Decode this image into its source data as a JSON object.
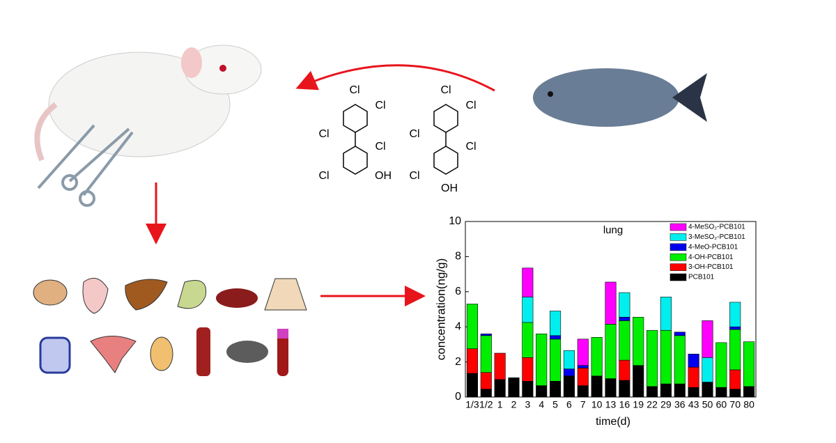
{
  "chart_data": {
    "type": "stacked_bar",
    "annotation": "lung",
    "xlabel": "time(d)",
    "ylabel": "concentration(ng/g)",
    "categories": [
      "1/3",
      "1/2",
      "1",
      "2",
      "3",
      "4",
      "5",
      "6",
      "7",
      "10",
      "13",
      "16",
      "19",
      "22",
      "29",
      "36",
      "43",
      "50",
      "60",
      "70",
      "80"
    ],
    "ylim": [
      0,
      10
    ],
    "yticks": [
      0,
      2,
      4,
      6,
      8,
      10
    ],
    "legend": "upper right",
    "series": [
      {
        "name": "PCB101",
        "color": "#000000",
        "values": [
          1.35,
          0.45,
          1.0,
          1.1,
          0.9,
          0.65,
          0.9,
          1.2,
          0.65,
          1.2,
          1.05,
          0.95,
          1.8,
          0.6,
          0.75,
          0.75,
          0.55,
          0.85,
          0.55,
          0.45,
          0.6
        ]
      },
      {
        "name": "3-OH-PCB101",
        "color": "#ff0000",
        "values": [
          1.4,
          0.95,
          1.5,
          0,
          1.35,
          0,
          0,
          0,
          1.0,
          0,
          0,
          1.15,
          0,
          0,
          0,
          0,
          1.15,
          0,
          0,
          1.1,
          0
        ]
      },
      {
        "name": "4-OH-PCB101",
        "color": "#00ee00",
        "values": [
          2.55,
          2.1,
          0,
          0,
          2.0,
          2.95,
          2.4,
          0,
          0,
          2.2,
          3.1,
          2.25,
          2.75,
          3.2,
          3.05,
          2.75,
          0,
          0,
          2.55,
          2.3,
          2.55
        ]
      },
      {
        "name": "4-MeO-PCB101",
        "color": "#0000ee",
        "values": [
          0,
          0.1,
          0,
          0,
          0,
          0,
          0.2,
          0.4,
          0.15,
          0,
          0,
          0.2,
          0,
          0,
          0,
          0.2,
          0.75,
          0,
          0,
          0.15,
          0
        ]
      },
      {
        "name": "3-MeSO₂-PCB101",
        "color": "#00eeee",
        "values": [
          0,
          0,
          0,
          0,
          1.45,
          0,
          1.4,
          1.05,
          0,
          0,
          0,
          1.4,
          0,
          0,
          1.9,
          0,
          0,
          1.4,
          0,
          1.4,
          0
        ]
      },
      {
        "name": "4-MeSO₂-PCB101",
        "color": "#ff00ff",
        "values": [
          0,
          0,
          0,
          0,
          1.65,
          0,
          0,
          0,
          1.5,
          0,
          2.4,
          0,
          0,
          0,
          0,
          0,
          0,
          2.1,
          0,
          0,
          0
        ]
      }
    ]
  },
  "molecules": [
    {
      "labels": [
        "Cl",
        "Cl",
        "Cl",
        "Cl",
        "Cl",
        "OH"
      ]
    },
    {
      "labels": [
        "Cl",
        "Cl",
        "Cl",
        "Cl",
        "Cl",
        "OH"
      ]
    }
  ]
}
